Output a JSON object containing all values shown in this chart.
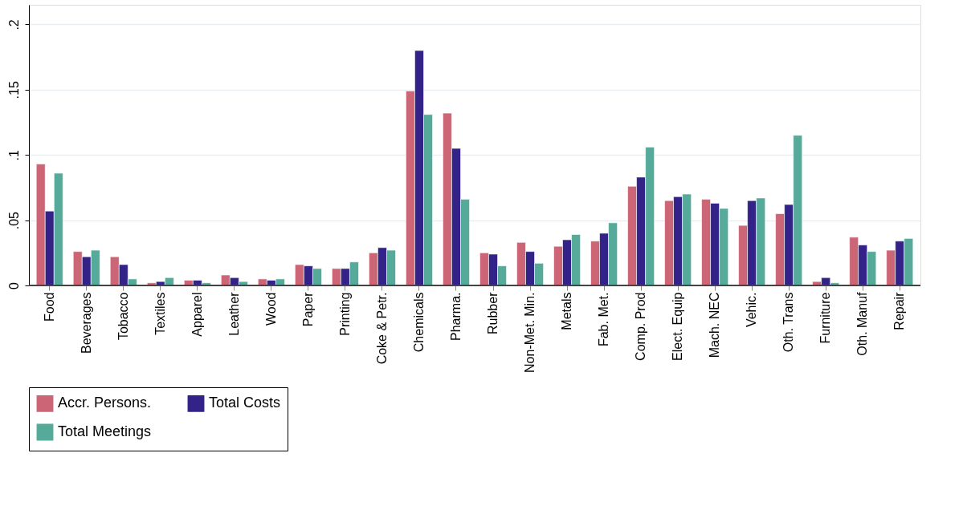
{
  "chart_data": {
    "type": "bar",
    "categories": [
      "Food",
      "Beverages",
      "Tobacco",
      "Textiles",
      "Apparel",
      "Leather",
      "Wood",
      "Paper",
      "Printing",
      "Coke & Petr.",
      "Chemicals",
      "Pharma.",
      "Rubber",
      "Non-Met. Min.",
      "Metals",
      "Fab. Met.",
      "Comp. Prod",
      "Elect. Equip",
      "Mach. NEC",
      "Vehic.",
      "Oth. Trans",
      "Furniture",
      "Oth. Manuf",
      "Repair"
    ],
    "series": [
      {
        "name": "Accr. Persons.",
        "color": "#cc6677",
        "values": [
          0.093,
          0.026,
          0.022,
          0.002,
          0.004,
          0.008,
          0.005,
          0.016,
          0.013,
          0.025,
          0.149,
          0.132,
          0.025,
          0.033,
          0.03,
          0.034,
          0.076,
          0.065,
          0.066,
          0.046,
          0.055,
          0.003,
          0.037,
          0.027
        ]
      },
      {
        "name": "Total Costs",
        "color": "#332288",
        "values": [
          0.057,
          0.022,
          0.016,
          0.003,
          0.004,
          0.006,
          0.004,
          0.015,
          0.013,
          0.029,
          0.18,
          0.105,
          0.024,
          0.026,
          0.035,
          0.04,
          0.083,
          0.068,
          0.063,
          0.065,
          0.062,
          0.006,
          0.031,
          0.034
        ]
      },
      {
        "name": "Total Meetings",
        "color": "#55aa99",
        "values": [
          0.086,
          0.027,
          0.005,
          0.006,
          0.002,
          0.003,
          0.005,
          0.013,
          0.018,
          0.027,
          0.131,
          0.066,
          0.015,
          0.017,
          0.039,
          0.048,
          0.106,
          0.07,
          0.059,
          0.067,
          0.115,
          0.002,
          0.026,
          0.036
        ]
      }
    ],
    "ylim": [
      0,
      0.215
    ],
    "yticks": [
      {
        "value": 0,
        "label": "0"
      },
      {
        "value": 0.05,
        "label": ".05"
      },
      {
        "value": 0.1,
        "label": ".1"
      },
      {
        "value": 0.15,
        "label": ".15"
      },
      {
        "value": 0.2,
        "label": ".2"
      }
    ],
    "grid": "y",
    "legend": "bottom"
  }
}
